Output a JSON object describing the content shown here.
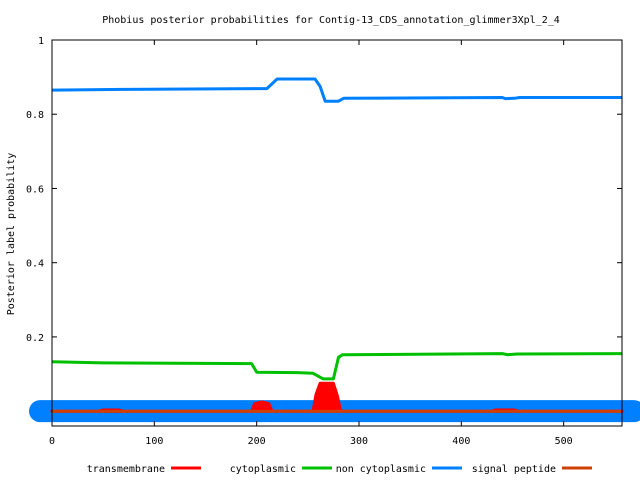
{
  "chart_data": {
    "type": "line",
    "title": "Phobius posterior probabilities for Contig-13_CDS_annotation_glimmer3Xpl_2_4",
    "xlabel": "",
    "ylabel": "Posterior label probability",
    "xlim": [
      0,
      557
    ],
    "ylim": [
      -0.04,
      1
    ],
    "x_ticks": [
      0,
      100,
      200,
      300,
      400,
      500
    ],
    "y_ticks": [
      0.2,
      0.4,
      0.6,
      0.8,
      1
    ],
    "y_tick_labels": [
      "0.2",
      "0.4",
      "0.6",
      "0.8",
      "1"
    ],
    "grid": false,
    "legend_position": "bottom",
    "series": [
      {
        "name": "transmembrane",
        "color": "#ff0000",
        "points": [
          [
            0,
            0.0
          ],
          [
            45,
            0.0
          ],
          [
            50,
            0.003
          ],
          [
            65,
            0.003
          ],
          [
            70,
            0.0
          ],
          [
            195,
            0.0
          ],
          [
            198,
            0.02
          ],
          [
            205,
            0.025
          ],
          [
            212,
            0.02
          ],
          [
            215,
            0.0
          ],
          [
            255,
            0.0
          ],
          [
            258,
            0.045
          ],
          [
            262,
            0.075
          ],
          [
            275,
            0.075
          ],
          [
            279,
            0.04
          ],
          [
            282,
            0.0
          ],
          [
            430,
            0.0
          ],
          [
            433,
            0.003
          ],
          [
            452,
            0.003
          ],
          [
            455,
            0.0
          ],
          [
            557,
            0.0
          ]
        ]
      },
      {
        "name": "cytoplasmic",
        "color": "#00c000",
        "points": [
          [
            0,
            0.133
          ],
          [
            50,
            0.13
          ],
          [
            195,
            0.128
          ],
          [
            200,
            0.105
          ],
          [
            240,
            0.104
          ],
          [
            255,
            0.102
          ],
          [
            265,
            0.087
          ],
          [
            275,
            0.087
          ],
          [
            280,
            0.145
          ],
          [
            284,
            0.152
          ],
          [
            340,
            0.153
          ],
          [
            440,
            0.155
          ],
          [
            445,
            0.152
          ],
          [
            455,
            0.154
          ],
          [
            557,
            0.155
          ]
        ]
      },
      {
        "name": "non cytoplasmic",
        "color": "#0080ff",
        "points": [
          [
            0,
            0.865
          ],
          [
            70,
            0.867
          ],
          [
            210,
            0.869
          ],
          [
            220,
            0.895
          ],
          [
            257,
            0.895
          ],
          [
            262,
            0.875
          ],
          [
            267,
            0.835
          ],
          [
            280,
            0.835
          ],
          [
            285,
            0.843
          ],
          [
            440,
            0.845
          ],
          [
            443,
            0.842
          ],
          [
            452,
            0.843
          ],
          [
            457,
            0.845
          ],
          [
            557,
            0.845
          ]
        ]
      },
      {
        "name": "signal peptide",
        "color": "#d04000",
        "points": [
          [
            0,
            0.0
          ],
          [
            557,
            0.0
          ]
        ]
      }
    ]
  }
}
